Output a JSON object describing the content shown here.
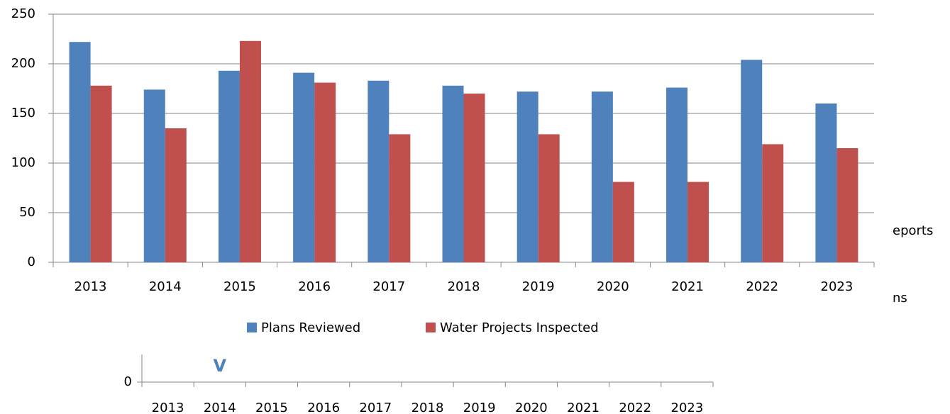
{
  "chart_data": [
    {
      "type": "bar",
      "categories": [
        "2013",
        "2014",
        "2015",
        "2016",
        "2017",
        "2018",
        "2019",
        "2020",
        "2021",
        "2022",
        "2023"
      ],
      "series": [
        {
          "name": "Plans Reviewed",
          "color": "#4f81bd",
          "values": [
            222,
            174,
            193,
            191,
            183,
            178,
            172,
            172,
            176,
            204,
            160
          ]
        },
        {
          "name": "Water Projects Inspected",
          "color": "#c0504d",
          "values": [
            178,
            135,
            223,
            181,
            129,
            170,
            129,
            81,
            81,
            119,
            115
          ]
        }
      ],
      "ylim": [
        0,
        250
      ],
      "yticks": [
        0,
        50,
        100,
        150,
        200,
        250
      ],
      "grid": true,
      "legend": "bottom",
      "fragments": [
        "eports",
        "ns"
      ]
    },
    {
      "type": "bar",
      "categories": [
        "2013",
        "2014",
        "2015",
        "2016",
        "2017",
        "2018",
        "2019",
        "2020",
        "2021",
        "2022",
        "2023"
      ],
      "yticks": [
        0
      ],
      "annotation": "V",
      "annotation_color": "#4f81bd"
    }
  ]
}
